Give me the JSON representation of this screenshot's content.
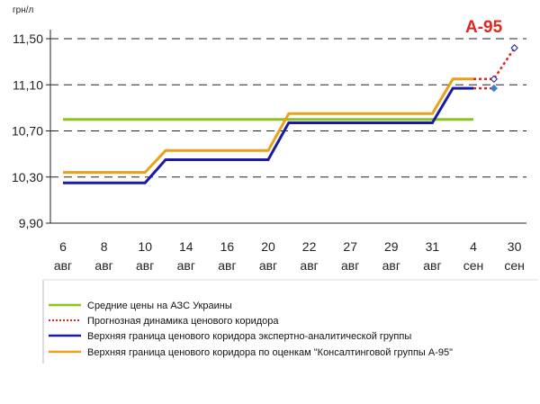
{
  "chart_data": {
    "type": "line",
    "title": "А-95",
    "ylabel": "грн/л",
    "ylim": [
      9.9,
      11.5
    ],
    "yticks": [
      "11,50",
      "11,10",
      "10,70",
      "10,30",
      "9,90"
    ],
    "grid": "horizontal dashed",
    "categories": [
      {
        "day": "6",
        "month": "авг"
      },
      {
        "day": "8",
        "month": "авг"
      },
      {
        "day": "10",
        "month": "авг"
      },
      {
        "day": "14",
        "month": "авг"
      },
      {
        "day": "16",
        "month": "авг"
      },
      {
        "day": "20",
        "month": "авг"
      },
      {
        "day": "22",
        "month": "авг"
      },
      {
        "day": "27",
        "month": "авг"
      },
      {
        "day": "29",
        "month": "авг"
      },
      {
        "day": "31",
        "month": "авг"
      },
      {
        "day": "4",
        "month": "сен"
      },
      {
        "day": "30",
        "month": "сен"
      }
    ],
    "legend_position": "bottom",
    "series": [
      {
        "name": "Средние цены на АЗС Украины",
        "color": "#8dc21f",
        "style": "solid",
        "points": [
          [
            0,
            10.8
          ],
          [
            10,
            10.8
          ]
        ]
      },
      {
        "name": "Прогнозная динамика ценового коридора",
        "color": "#e0261f",
        "style": "dotted",
        "points": [
          [
            10,
            11.15
          ],
          [
            10.5,
            11.15
          ],
          [
            11,
            11.42
          ]
        ],
        "points_lower": [
          [
            10,
            11.07
          ],
          [
            10.5,
            11.07
          ]
        ]
      },
      {
        "name": "Верхняя граница ценового коридора экспертно-аналитической группы",
        "color": "#1a1aa6",
        "style": "solid",
        "points": [
          [
            0,
            10.25
          ],
          [
            2,
            10.25
          ],
          [
            2.5,
            10.45
          ],
          [
            5,
            10.45
          ],
          [
            5.5,
            10.77
          ],
          [
            9,
            10.77
          ],
          [
            9.5,
            11.07
          ],
          [
            10,
            11.07
          ]
        ]
      },
      {
        "name": "Верхняя граница ценового коридора по оценкам \"Консалтинговой группы А-95\"",
        "color": "#e8a21a",
        "style": "solid",
        "points": [
          [
            0,
            10.34
          ],
          [
            2,
            10.34
          ],
          [
            2.5,
            10.53
          ],
          [
            5,
            10.53
          ],
          [
            5.5,
            10.85
          ],
          [
            9,
            10.85
          ],
          [
            9.5,
            11.15
          ],
          [
            10,
            11.15
          ]
        ]
      }
    ],
    "markers": [
      {
        "x": 10.5,
        "y": 11.07,
        "shape": "diamond",
        "color": "#3a7fd6"
      },
      {
        "x": 10.5,
        "y": 11.15,
        "shape": "diamond-open",
        "color": "#1a1aa6"
      },
      {
        "x": 11,
        "y": 11.42,
        "shape": "diamond-open",
        "color": "#1a1aa6"
      }
    ]
  }
}
